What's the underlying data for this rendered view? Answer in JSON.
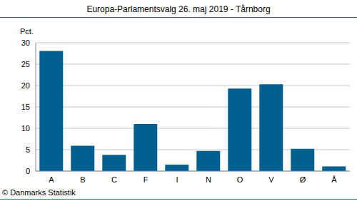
{
  "chart_data": {
    "type": "bar",
    "title": "Europa-Parlamentsvalg 26. maj 2019 - Tårnborg",
    "y_label": "Pct.",
    "categories": [
      "A",
      "B",
      "C",
      "F",
      "I",
      "N",
      "O",
      "V",
      "Ø",
      "Å"
    ],
    "values": [
      28.1,
      5.9,
      3.8,
      11.0,
      1.5,
      4.7,
      19.3,
      20.3,
      5.2,
      1.1
    ],
    "color": "#005f8f",
    "ylim": [
      0,
      30
    ],
    "yticks": [
      0,
      5,
      10,
      15,
      20,
      25,
      30
    ],
    "grid": true,
    "annotations": [
      "© Danmarks Statistik"
    ]
  }
}
